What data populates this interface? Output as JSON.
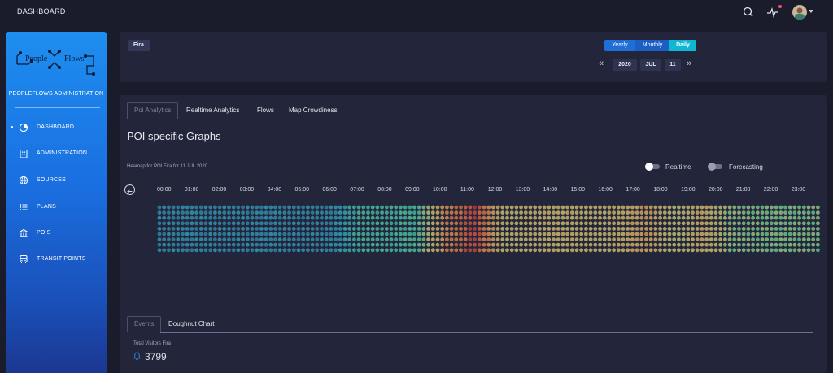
{
  "header": {
    "title": "DASHBOARD",
    "icons": [
      "search-icon",
      "activity-icon",
      "avatar",
      "chevron-down-icon"
    ]
  },
  "sidebar": {
    "logo_text_left": "People",
    "logo_text_right": "Flows",
    "admin_title": "PEOPLEFLOWS ADMINISTRATION",
    "items": [
      {
        "label": "DASHBOARD",
        "icon": "pie-chart-icon",
        "active": true
      },
      {
        "label": "ADMINISTRATION",
        "icon": "building-icon",
        "active": false
      },
      {
        "label": "SOURCES",
        "icon": "globe-icon",
        "active": false
      },
      {
        "label": "PLANS",
        "icon": "list-icon",
        "active": false
      },
      {
        "label": "POIS",
        "icon": "bank-icon",
        "active": false
      },
      {
        "label": "TRANSIT POINTS",
        "icon": "bus-icon",
        "active": false
      }
    ]
  },
  "filter": {
    "poi_chip": "Fira",
    "periods": [
      "Yearly",
      "Monthly",
      "Daily"
    ],
    "active_period": "Daily",
    "year": "2020",
    "month": "JUL",
    "day": "11"
  },
  "tabs": [
    "Poi Analytics",
    "Realtime Analytics",
    "Flows",
    "Map Crowdiness"
  ],
  "active_tab": "Poi Analytics",
  "section_title": "POI specific Graphs",
  "heatmap": {
    "caption": "Heamap for POI Fira for 11 JUL 2020",
    "toggles": [
      {
        "label": "Realtime",
        "on": true
      },
      {
        "label": "Forecasting",
        "on": false
      }
    ],
    "hours": [
      "00:00",
      "01:00",
      "02:00",
      "03:00",
      "04:00",
      "05:00",
      "06:00",
      "07:00",
      "08:00",
      "09:00",
      "10:00",
      "11:00",
      "12:00",
      "13:00",
      "14:00",
      "15:00",
      "16:00",
      "17:00",
      "18:00",
      "19:00",
      "20:00",
      "21:00",
      "22:00",
      "23:00"
    ]
  },
  "chart_data": {
    "type": "heatmap",
    "title": "Heamap for POI Fira for 11 JUL 2020",
    "x": [
      "00:00",
      "01:00",
      "02:00",
      "03:00",
      "04:00",
      "05:00",
      "06:00",
      "07:00",
      "08:00",
      "09:00",
      "10:00",
      "11:00",
      "12:00",
      "13:00",
      "14:00",
      "15:00",
      "16:00",
      "17:00",
      "18:00",
      "19:00",
      "20:00",
      "21:00",
      "22:00",
      "23:00"
    ],
    "intensity_by_hour": [
      0.1,
      0.1,
      0.1,
      0.1,
      0.1,
      0.1,
      0.1,
      0.28,
      0.28,
      0.3,
      0.75,
      0.95,
      0.55,
      0.58,
      0.58,
      0.58,
      0.58,
      0.68,
      0.5,
      0.62,
      0.42,
      0.4,
      0.4,
      0.4
    ],
    "color_scale": [
      "#3a6a9a",
      "#2a9aae",
      "#50b890",
      "#b8b870",
      "#c8a060",
      "#d07040",
      "#b03040"
    ]
  },
  "bottom": {
    "tabs": [
      "Events",
      "Doughnut Chart"
    ],
    "active_tab": "Events",
    "total_label": "Total Visitors Fira",
    "total_value": "3799"
  }
}
